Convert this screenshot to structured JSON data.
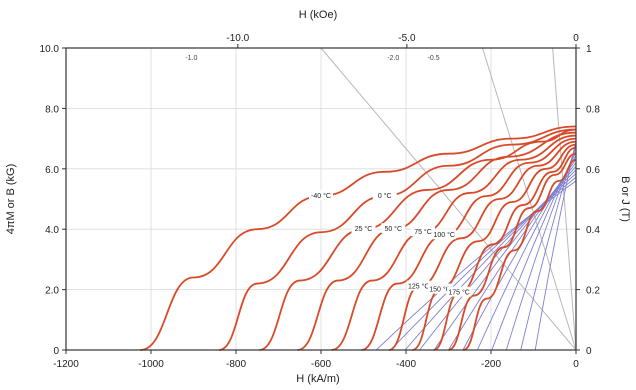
{
  "chart_data": {
    "type": "line",
    "title": "",
    "xlabel": "H (kA/m)",
    "ylabel": "4πM or B (kG)",
    "top_xlabel": "H (kOe)",
    "right_ylabel": "B or J (T)",
    "xlim": [
      -1200,
      0
    ],
    "ylim": [
      0,
      10
    ],
    "x_ticks": [
      -1200,
      -1000,
      -800,
      -600,
      -400,
      -200,
      0
    ],
    "x_tick_labels": [
      "-1200",
      "-1000",
      "-800",
      "-600",
      "-400",
      "-200",
      "0"
    ],
    "y_ticks": [
      0,
      2,
      4,
      6,
      8,
      10
    ],
    "y_tick_labels": [
      "0",
      "2.0",
      "4.0",
      "6.0",
      "8.0",
      "10.0"
    ],
    "top_ticks_kOe": [
      -10,
      -5,
      0
    ],
    "top_tick_labels": [
      "-10.0",
      "-5.0",
      "0"
    ],
    "right_ticks_T": [
      0,
      0.2,
      0.4,
      0.6,
      0.8,
      1
    ],
    "right_tick_labels": [
      "0",
      "0.2",
      "0.4",
      "0.6",
      "0.8",
      "1"
    ],
    "loadline_labels": [
      "-1.0",
      "-2.0",
      "-0.5"
    ],
    "grid": true,
    "intrinsic_color": "#d84a28",
    "normal_color": "#7d7fd0",
    "loadline_color": "#b8b8b8",
    "series": [
      {
        "label": "-40 °C",
        "x": [
          -1025,
          -900,
          -750,
          -600,
          -450,
          -300,
          -150,
          0
        ],
        "y": [
          0,
          2.4,
          4.0,
          5.1,
          5.9,
          6.5,
          7.0,
          7.4
        ]
      },
      {
        "label": "0 °C",
        "x": [
          -840,
          -750,
          -600,
          -450,
          -300,
          -150,
          0
        ],
        "y": [
          0,
          2.2,
          3.9,
          5.1,
          6.1,
          6.8,
          7.3
        ]
      },
      {
        "label": "25 °C",
        "x": [
          -745,
          -650,
          -500,
          -350,
          -200,
          -80,
          0
        ],
        "y": [
          0,
          2.3,
          4.0,
          5.3,
          6.3,
          6.9,
          7.3
        ]
      },
      {
        "label": "50 °C",
        "x": [
          -655,
          -560,
          -430,
          -300,
          -160,
          0
        ],
        "y": [
          0,
          2.3,
          4.0,
          5.3,
          6.4,
          7.2
        ]
      },
      {
        "label": "75 °C",
        "x": [
          -575,
          -480,
          -360,
          -250,
          -130,
          0
        ],
        "y": [
          0,
          2.3,
          3.9,
          5.2,
          6.3,
          7.1
        ]
      },
      {
        "label": "100 °C",
        "x": [
          -505,
          -420,
          -310,
          -210,
          -110,
          0
        ],
        "y": [
          0,
          2.2,
          3.8,
          5.1,
          6.2,
          7.0
        ]
      },
      {
        "label": "125 °C",
        "x": [
          -440,
          -370,
          -270,
          -180,
          -90,
          0
        ],
        "y": [
          0,
          2.1,
          3.7,
          5.0,
          6.1,
          6.9
        ]
      },
      {
        "label": "150 °C",
        "x": [
          -385,
          -320,
          -230,
          -150,
          -70,
          0
        ],
        "y": [
          0,
          2.0,
          3.6,
          4.9,
          6.0,
          6.8
        ]
      },
      {
        "label": "175 °C",
        "x": [
          -335,
          -275,
          -195,
          -125,
          -55,
          0
        ],
        "y": [
          0,
          1.9,
          3.5,
          4.8,
          5.9,
          6.7
        ]
      },
      {
        "label": "",
        "x": [
          -300,
          -240,
          -170,
          -110,
          -50,
          0
        ],
        "y": [
          0,
          1.8,
          3.4,
          4.7,
          5.8,
          6.5
        ]
      },
      {
        "label": "",
        "x": [
          -265,
          -210,
          -145,
          -90,
          -40,
          0
        ],
        "y": [
          0,
          1.7,
          3.3,
          4.6,
          5.6,
          6.3
        ]
      }
    ]
  }
}
